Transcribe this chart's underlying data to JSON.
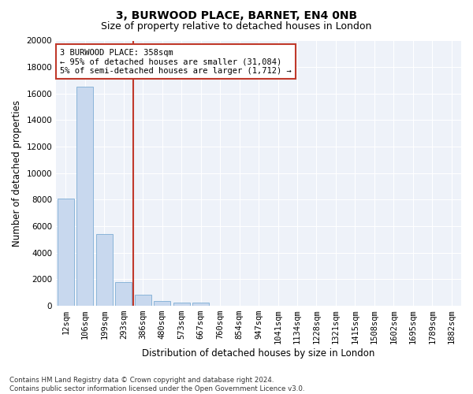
{
  "title": "3, BURWOOD PLACE, BARNET, EN4 0NB",
  "subtitle": "Size of property relative to detached houses in London",
  "xlabel": "Distribution of detached houses by size in London",
  "ylabel": "Number of detached properties",
  "categories": [
    "12sqm",
    "106sqm",
    "199sqm",
    "293sqm",
    "386sqm",
    "480sqm",
    "573sqm",
    "667sqm",
    "760sqm",
    "854sqm",
    "947sqm",
    "1041sqm",
    "1134sqm",
    "1228sqm",
    "1321sqm",
    "1415sqm",
    "1508sqm",
    "1602sqm",
    "1695sqm",
    "1789sqm",
    "1882sqm"
  ],
  "values": [
    8050,
    16500,
    5400,
    1800,
    800,
    350,
    250,
    200,
    0,
    0,
    0,
    0,
    0,
    0,
    0,
    0,
    0,
    0,
    0,
    0,
    0
  ],
  "bar_color": "#c8d8ee",
  "bar_edge_color": "#7dadd4",
  "vline_color": "#c0392b",
  "vline_index": 3.5,
  "annotation_text": "3 BURWOOD PLACE: 358sqm\n← 95% of detached houses are smaller (31,084)\n5% of semi-detached houses are larger (1,712) →",
  "annotation_box_color": "white",
  "annotation_box_edge_color": "#c0392b",
  "ylim": [
    0,
    20000
  ],
  "yticks": [
    0,
    2000,
    4000,
    6000,
    8000,
    10000,
    12000,
    14000,
    16000,
    18000,
    20000
  ],
  "title_fontsize": 10,
  "subtitle_fontsize": 9,
  "xlabel_fontsize": 8.5,
  "ylabel_fontsize": 8.5,
  "tick_fontsize": 7.5,
  "annot_fontsize": 7.5,
  "footnote": "Contains HM Land Registry data © Crown copyright and database right 2024.\nContains public sector information licensed under the Open Government Licence v3.0.",
  "background_color": "#eef2f9",
  "grid_color": "white"
}
